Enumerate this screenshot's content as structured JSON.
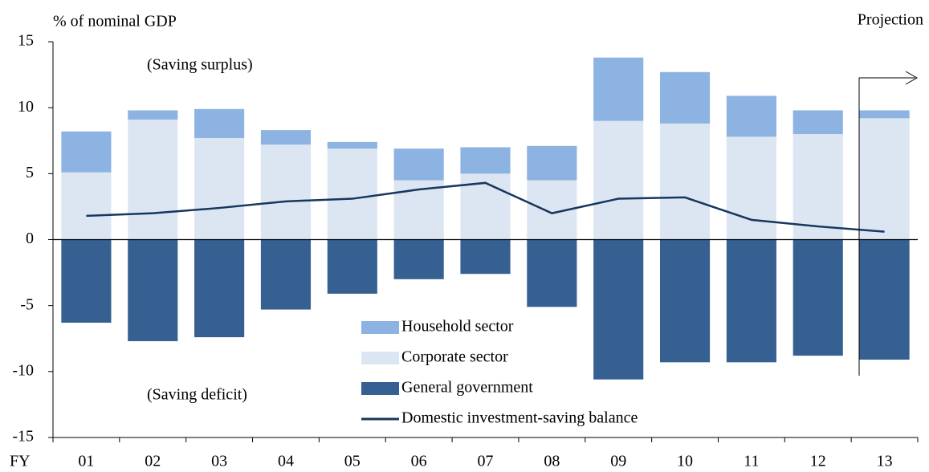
{
  "chart_data": {
    "type": "bar",
    "y_label": "% of nominal GDP",
    "x_label": "FY",
    "annotations": {
      "projection": "Projection",
      "surplus": "(Saving surplus)",
      "deficit": "(Saving deficit)"
    },
    "categories": [
      "01",
      "02",
      "03",
      "04",
      "05",
      "06",
      "07",
      "08",
      "09",
      "10",
      "11",
      "12",
      "13"
    ],
    "series": [
      {
        "name": "Household sector",
        "type": "bar",
        "color": "#8db3e2",
        "values": [
          3.1,
          0.7,
          2.2,
          1.1,
          0.5,
          2.4,
          2.0,
          2.6,
          4.8,
          3.9,
          3.1,
          1.8,
          0.6
        ]
      },
      {
        "name": "Corporate sector",
        "type": "bar",
        "color": "#dce6f2",
        "values": [
          5.1,
          9.1,
          7.7,
          7.2,
          6.9,
          4.5,
          5.0,
          4.5,
          9.0,
          8.8,
          7.8,
          8.0,
          9.2
        ]
      },
      {
        "name": "General government",
        "type": "bar",
        "color": "#376092",
        "values": [
          -6.3,
          -7.7,
          -7.4,
          -5.3,
          -4.1,
          -3.0,
          -2.6,
          -5.1,
          -10.6,
          -9.3,
          -9.3,
          -8.8,
          -9.1
        ]
      },
      {
        "name": "Domestic investment-saving balance",
        "type": "line",
        "color": "#17375e",
        "values": [
          1.8,
          2.0,
          2.4,
          2.9,
          3.1,
          3.8,
          4.3,
          2.0,
          3.1,
          3.2,
          1.5,
          1.0,
          0.6
        ]
      }
    ],
    "stacked": true,
    "ylim": [
      -15,
      15
    ],
    "yticks": [
      -15,
      -10,
      -5,
      0,
      5,
      10,
      15
    ]
  }
}
